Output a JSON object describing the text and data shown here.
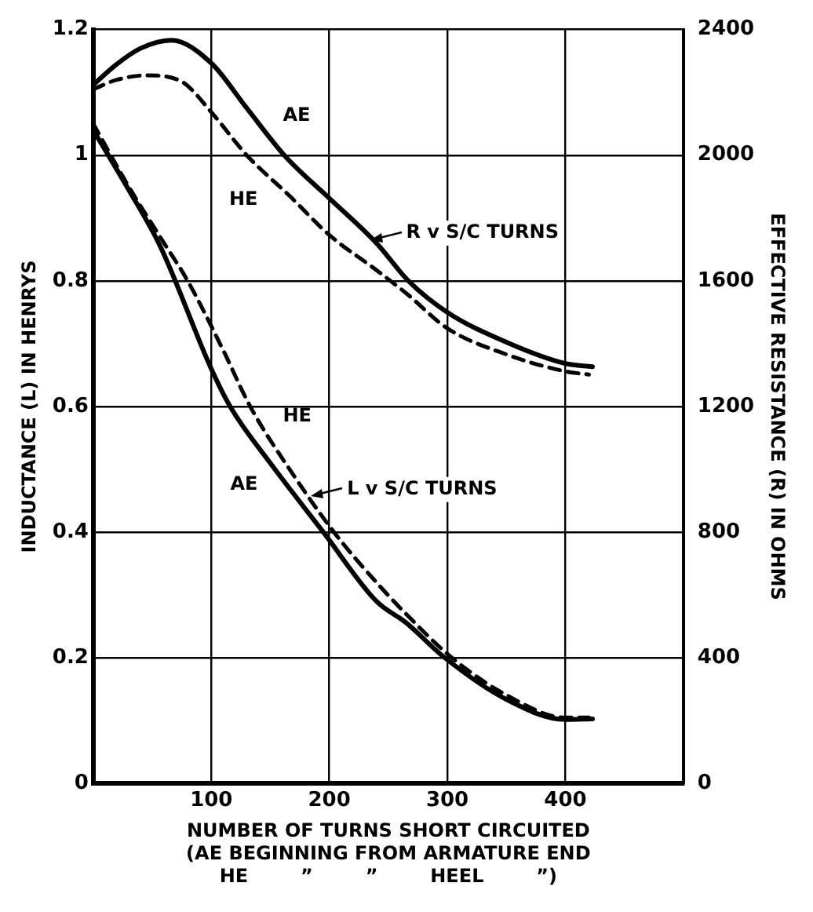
{
  "chart_data": {
    "type": "line",
    "xlabel": "NUMBER OF TURNS SHORT CIRCUITED\n(AE BEGINNING FROM ARMATURE END\nHE        ”        ”        HEEL        ”)",
    "ylabel": "INDUCTANCE (L) IN HENRYS",
    "y2label": "EFFECTIVE RESISTANCE (R) IN OHMS",
    "xlim": [
      0,
      500
    ],
    "xticks": [
      100,
      200,
      300,
      400
    ],
    "ylim": [
      0,
      1.2
    ],
    "yticks": [
      0,
      0.2,
      0.4,
      0.6,
      0.8,
      1.0,
      1.2
    ],
    "y2lim": [
      0,
      2400
    ],
    "y2ticks": [
      0,
      400,
      800,
      1200,
      1600,
      2000,
      2400
    ],
    "grid": true,
    "series": [
      {
        "name": "AE",
        "color": "#000000",
        "axis": "y2",
        "line_style": "solid",
        "x": [
          0,
          20,
          40,
          66,
          100,
          130,
          163,
          200,
          240,
          267,
          300,
          350,
          400,
          423
        ],
        "values": [
          2224,
          2290,
          2340,
          2366,
          2293,
          2150,
          1995,
          1863,
          1720,
          1600,
          1500,
          1405,
          1337,
          1327
        ]
      },
      {
        "name": "HE",
        "color": "#000000",
        "axis": "y2",
        "line_style": "dashed",
        "x": [
          0,
          20,
          45,
          75,
          100,
          130,
          167,
          200,
          240,
          265,
          300,
          350,
          400,
          420
        ],
        "values": [
          2210,
          2240,
          2254,
          2234,
          2137,
          2000,
          1868,
          1746,
          1634,
          1561,
          1449,
          1366,
          1312,
          1302
        ]
      },
      {
        "name": "AE",
        "color": "#000000",
        "axis": "y",
        "line_style": "solid",
        "x": [
          0,
          30,
          57,
          100,
          116,
          150,
          195,
          240,
          265,
          298,
          350,
          400,
          423
        ],
        "values": [
          1.04,
          0.945,
          0.854,
          0.66,
          0.6,
          0.51,
          0.4,
          0.29,
          0.256,
          0.2,
          0.134,
          0.102,
          0.103
        ]
      },
      {
        "name": "HE",
        "color": "#000000",
        "axis": "y",
        "line_style": "dashed",
        "x": [
          0,
          30,
          60,
          80,
          110,
          133,
          170,
          204,
          240,
          265,
          304,
          350,
          400,
          420
        ],
        "values": [
          1.05,
          0.95,
          0.86,
          0.8,
          0.69,
          0.6,
          0.49,
          0.4,
          0.32,
          0.27,
          0.2,
          0.141,
          0.105,
          0.105
        ]
      }
    ],
    "annotations": [
      "R v S/C TURNS",
      "L v S/C TURNS"
    ]
  }
}
